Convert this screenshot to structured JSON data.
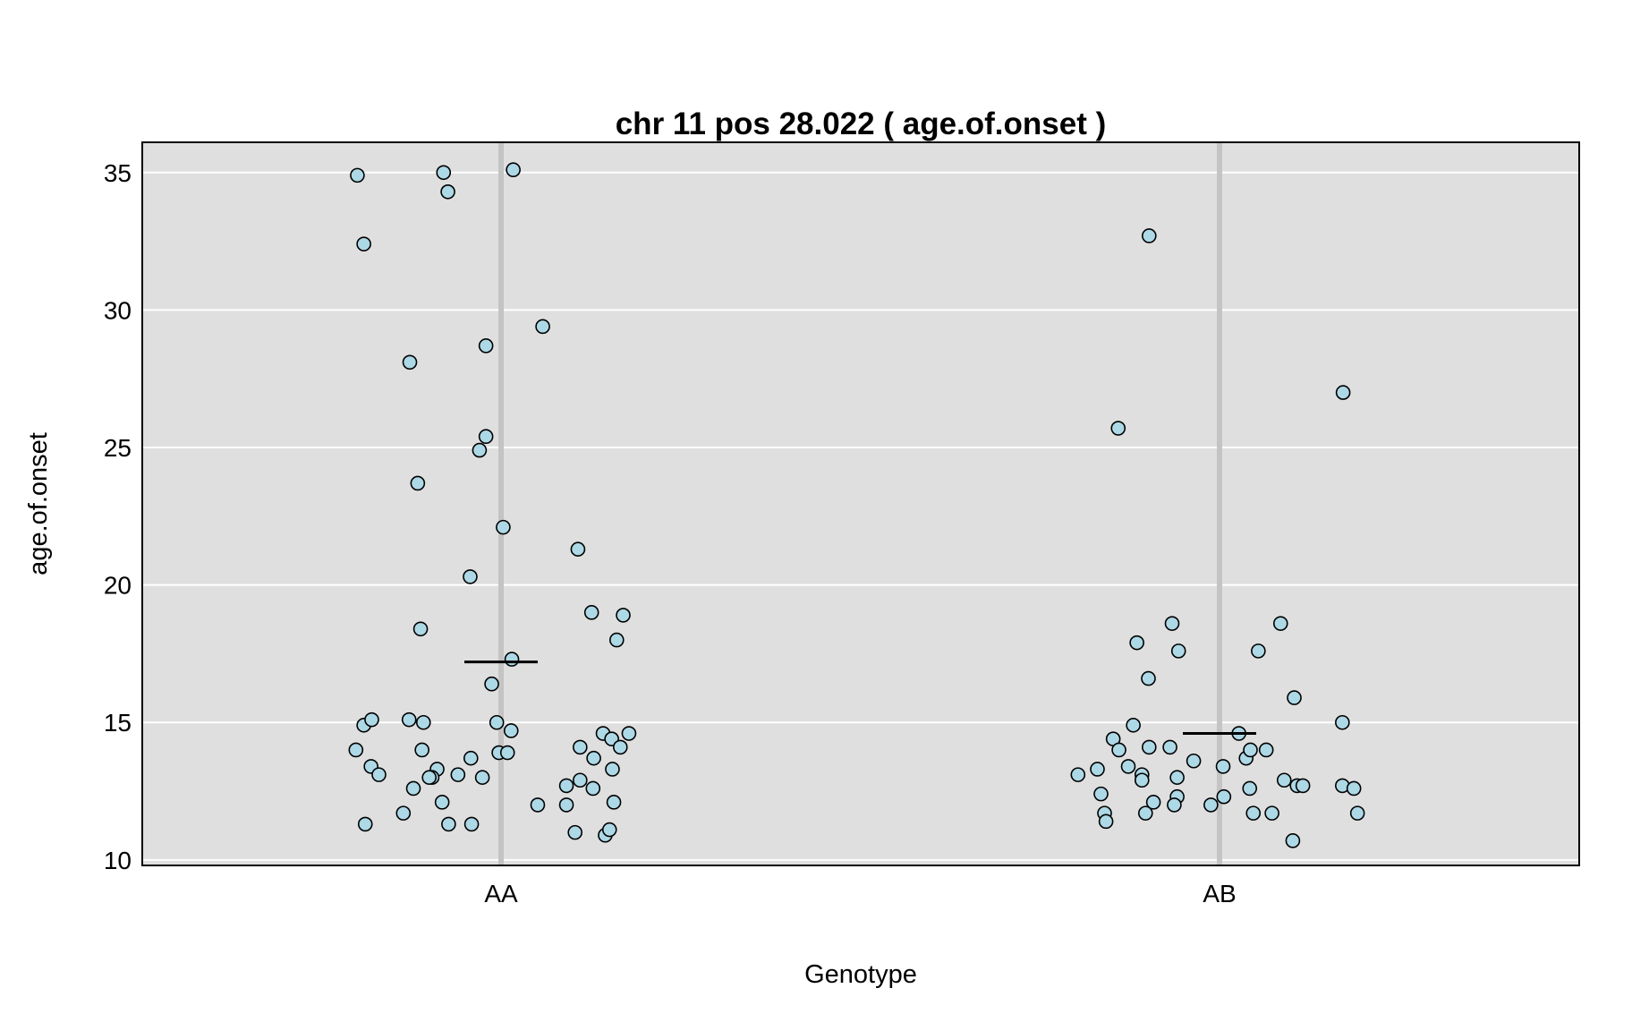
{
  "chart_data": {
    "type": "scatter",
    "title": "chr 11 pos 28.022 ( age.of.onset )",
    "xlabel": "Genotype",
    "ylabel": "age.of.onset",
    "categories": [
      "AA",
      "AB"
    ],
    "ylim": [
      9.8,
      36.1
    ],
    "yticks": [
      10,
      15,
      20,
      25,
      30,
      35
    ],
    "grid": true,
    "legend": "none",
    "colors": {
      "panel": "#dfdfdf",
      "grid": "#ffffff",
      "category_line": "#c4c4c4",
      "point_fill": "#add8e6",
      "point_stroke": "#000000",
      "mean_line": "#000000"
    },
    "means": [
      17.2,
      14.6
    ],
    "series": [
      {
        "category": "AA",
        "points": [
          [
            -0.2,
            34.9
          ],
          [
            -0.191,
            32.4
          ],
          [
            -0.08,
            35.0
          ],
          [
            -0.074,
            34.3
          ],
          [
            0.017,
            35.1
          ],
          [
            0.058,
            29.4
          ],
          [
            -0.127,
            28.1
          ],
          [
            -0.021,
            28.7
          ],
          [
            -0.021,
            25.4
          ],
          [
            -0.03,
            24.9
          ],
          [
            -0.116,
            23.7
          ],
          [
            0.003,
            22.1
          ],
          [
            -0.043,
            20.3
          ],
          [
            -0.112,
            18.4
          ],
          [
            0.015,
            17.3
          ],
          [
            -0.013,
            16.4
          ],
          [
            -0.191,
            14.9
          ],
          [
            -0.18,
            15.1
          ],
          [
            -0.128,
            15.1
          ],
          [
            -0.108,
            15.0
          ],
          [
            -0.006,
            15.0
          ],
          [
            0.014,
            14.7
          ],
          [
            -0.202,
            14.0
          ],
          [
            -0.11,
            14.0
          ],
          [
            -0.042,
            13.7
          ],
          [
            -0.003,
            13.9
          ],
          [
            0.009,
            13.9
          ],
          [
            -0.181,
            13.4
          ],
          [
            -0.17,
            13.1
          ],
          [
            -0.089,
            13.3
          ],
          [
            -0.06,
            13.1
          ],
          [
            -0.096,
            13.0
          ],
          [
            -0.1,
            13.0
          ],
          [
            -0.026,
            13.0
          ],
          [
            -0.122,
            12.6
          ],
          [
            -0.082,
            12.1
          ],
          [
            -0.136,
            11.7
          ],
          [
            -0.189,
            11.3
          ],
          [
            -0.073,
            11.3
          ],
          [
            -0.041,
            11.3
          ],
          [
            0.051,
            12.0
          ],
          [
            0.107,
            21.3
          ],
          [
            0.126,
            19.0
          ],
          [
            0.17,
            18.9
          ],
          [
            0.161,
            18.0
          ],
          [
            0.11,
            14.1
          ],
          [
            0.129,
            13.7
          ],
          [
            0.142,
            14.6
          ],
          [
            0.154,
            14.4
          ],
          [
            0.166,
            14.1
          ],
          [
            0.178,
            14.6
          ],
          [
            0.155,
            13.3
          ],
          [
            0.091,
            12.7
          ],
          [
            0.11,
            12.9
          ],
          [
            0.128,
            12.6
          ],
          [
            0.091,
            12.0
          ],
          [
            0.157,
            12.1
          ],
          [
            0.103,
            11.0
          ],
          [
            0.145,
            10.9
          ],
          [
            0.151,
            11.1
          ]
        ]
      },
      {
        "category": "AB",
        "points": [
          [
            -0.098,
            32.7
          ],
          [
            -0.141,
            25.7
          ],
          [
            -0.066,
            18.6
          ],
          [
            -0.115,
            17.9
          ],
          [
            -0.057,
            17.6
          ],
          [
            -0.099,
            16.6
          ],
          [
            -0.12,
            14.9
          ],
          [
            -0.148,
            14.4
          ],
          [
            -0.14,
            14.0
          ],
          [
            -0.098,
            14.1
          ],
          [
            -0.069,
            14.1
          ],
          [
            -0.036,
            13.6
          ],
          [
            -0.17,
            13.3
          ],
          [
            -0.127,
            13.4
          ],
          [
            -0.108,
            13.1
          ],
          [
            -0.108,
            12.9
          ],
          [
            -0.059,
            13.0
          ],
          [
            -0.197,
            13.1
          ],
          [
            -0.165,
            12.4
          ],
          [
            -0.092,
            12.1
          ],
          [
            -0.059,
            12.3
          ],
          [
            -0.063,
            12.0
          ],
          [
            -0.16,
            11.7
          ],
          [
            -0.158,
            11.4
          ],
          [
            -0.103,
            11.7
          ],
          [
            -0.012,
            12.0
          ],
          [
            0.006,
            12.3
          ],
          [
            0.005,
            13.4
          ],
          [
            0.027,
            14.6
          ],
          [
            0.037,
            13.7
          ],
          [
            0.043,
            14.0
          ],
          [
            0.065,
            14.0
          ],
          [
            0.042,
            12.6
          ],
          [
            0.047,
            11.7
          ],
          [
            0.073,
            11.7
          ],
          [
            0.085,
            18.6
          ],
          [
            0.054,
            17.6
          ],
          [
            0.104,
            15.9
          ],
          [
            0.09,
            12.9
          ],
          [
            0.108,
            12.7
          ],
          [
            0.116,
            12.7
          ],
          [
            0.102,
            10.7
          ],
          [
            0.172,
            27.0
          ],
          [
            0.171,
            15.0
          ],
          [
            0.171,
            12.7
          ],
          [
            0.187,
            12.6
          ],
          [
            0.192,
            11.7
          ]
        ]
      }
    ]
  }
}
